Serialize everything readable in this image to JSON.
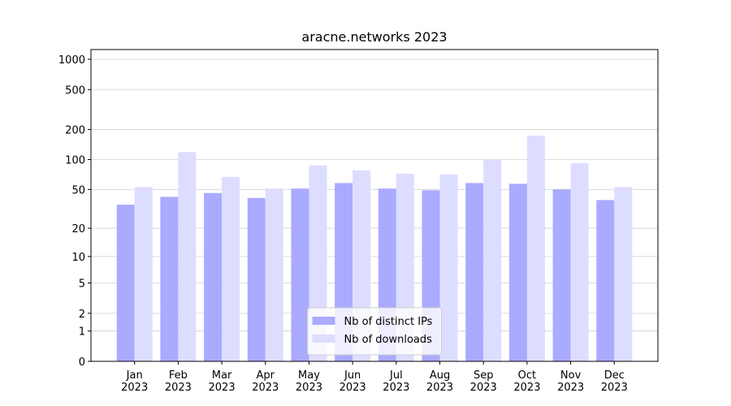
{
  "chart_data": {
    "type": "bar",
    "title": "aracne.networks 2023",
    "categories": [
      "Jan\n2023",
      "Feb\n2023",
      "Mar\n2023",
      "Apr\n2023",
      "May\n2023",
      "Jun\n2023",
      "Jul\n2023",
      "Aug\n2023",
      "Sep\n2023",
      "Oct\n2023",
      "Nov\n2023",
      "Dec\n2023"
    ],
    "series": [
      {
        "name": "Nb of distinct IPs",
        "color": "#aaaaff",
        "values": [
          35,
          42,
          46,
          41,
          51,
          58,
          51,
          49,
          58,
          57,
          50,
          39
        ]
      },
      {
        "name": "Nb of downloads",
        "color": "#ddddff",
        "values": [
          53,
          119,
          67,
          51,
          87,
          78,
          72,
          71,
          100,
          174,
          92,
          53
        ]
      }
    ],
    "yscale": "log1p",
    "ylim": [
      0,
      1250
    ],
    "yticks": [
      0,
      1,
      2,
      5,
      10,
      20,
      50,
      100,
      200,
      500,
      1000
    ],
    "grid": true,
    "legend": "lower center"
  }
}
